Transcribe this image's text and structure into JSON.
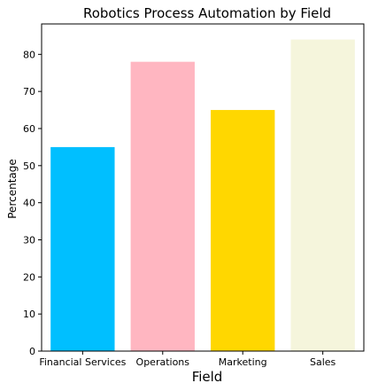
{
  "chart_data": {
    "type": "bar",
    "title": "Robotics Process Automation by Field",
    "xlabel": "Field",
    "ylabel": "Percentage",
    "categories": [
      "Financial Services",
      "Operations",
      "Marketing",
      "Sales"
    ],
    "values": [
      55,
      78,
      65,
      84
    ],
    "colors": [
      "#00bfff",
      "#ffb6c1",
      "#ffd700",
      "#f5f5dc"
    ],
    "ylim": [
      0,
      88.2
    ],
    "yticks": [
      0,
      10,
      20,
      30,
      40,
      50,
      60,
      70,
      80
    ],
    "grid": false,
    "legend": "none"
  }
}
